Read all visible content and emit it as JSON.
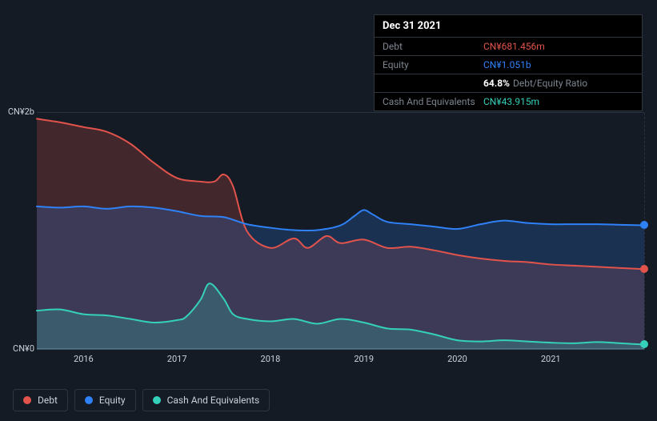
{
  "tooltip": {
    "date": "Dec 31 2021",
    "rows": [
      {
        "label": "Debt",
        "value": "CN¥681.456m",
        "color": "#e2534b"
      },
      {
        "label": "Equity",
        "value": "CN¥1.051b",
        "color": "#2f81f7"
      },
      {
        "label": "",
        "value_strong": "64.8%",
        "value_sub": "Debt/Equity Ratio",
        "color": "#ffffff"
      },
      {
        "label": "Cash And Equivalents",
        "value": "CN¥43.915m",
        "color": "#35d0ba"
      }
    ]
  },
  "chart": {
    "type": "area",
    "background_color": "#151b24",
    "grid_color": "#2a3340",
    "axis_color": "#4a5568",
    "text_color": "#c9d1d9",
    "font_size_axis": 11,
    "ylim": [
      0,
      2000
    ],
    "y_ticks": [
      {
        "v": 2000,
        "label": "CN¥2b"
      },
      {
        "v": 0,
        "label": "CN¥0"
      }
    ],
    "xlim": [
      2015.5,
      2022.0
    ],
    "x_ticks": [
      2016,
      2017,
      2018,
      2019,
      2020,
      2021
    ],
    "hover_x": 2022.0,
    "series": [
      {
        "name": "Debt",
        "color": "#e2534b",
        "fill_opacity": 0.22,
        "line_width": 2,
        "end_dot": true,
        "points": [
          [
            2015.5,
            1950
          ],
          [
            2015.75,
            1920
          ],
          [
            2016.0,
            1880
          ],
          [
            2016.25,
            1840
          ],
          [
            2016.5,
            1740
          ],
          [
            2016.75,
            1580
          ],
          [
            2017.0,
            1450
          ],
          [
            2017.25,
            1420
          ],
          [
            2017.4,
            1420
          ],
          [
            2017.5,
            1480
          ],
          [
            2017.6,
            1380
          ],
          [
            2017.75,
            1000
          ],
          [
            2018.0,
            860
          ],
          [
            2018.25,
            940
          ],
          [
            2018.4,
            860
          ],
          [
            2018.6,
            960
          ],
          [
            2018.75,
            900
          ],
          [
            2019.0,
            930
          ],
          [
            2019.25,
            860
          ],
          [
            2019.5,
            870
          ],
          [
            2019.75,
            840
          ],
          [
            2020.0,
            800
          ],
          [
            2020.25,
            770
          ],
          [
            2020.5,
            750
          ],
          [
            2020.75,
            740
          ],
          [
            2021.0,
            720
          ],
          [
            2021.25,
            710
          ],
          [
            2021.5,
            700
          ],
          [
            2021.75,
            690
          ],
          [
            2022.0,
            681
          ]
        ]
      },
      {
        "name": "Equity",
        "color": "#2f81f7",
        "fill_opacity": 0.22,
        "line_width": 2,
        "end_dot": true,
        "points": [
          [
            2015.5,
            1210
          ],
          [
            2015.75,
            1200
          ],
          [
            2016.0,
            1210
          ],
          [
            2016.25,
            1190
          ],
          [
            2016.5,
            1210
          ],
          [
            2016.75,
            1200
          ],
          [
            2017.0,
            1170
          ],
          [
            2017.25,
            1130
          ],
          [
            2017.5,
            1120
          ],
          [
            2017.75,
            1060
          ],
          [
            2018.0,
            1030
          ],
          [
            2018.25,
            1010
          ],
          [
            2018.5,
            1010
          ],
          [
            2018.75,
            1050
          ],
          [
            2018.9,
            1130
          ],
          [
            2019.0,
            1180
          ],
          [
            2019.1,
            1140
          ],
          [
            2019.25,
            1080
          ],
          [
            2019.5,
            1060
          ],
          [
            2019.75,
            1040
          ],
          [
            2020.0,
            1020
          ],
          [
            2020.25,
            1060
          ],
          [
            2020.5,
            1090
          ],
          [
            2020.75,
            1070
          ],
          [
            2021.0,
            1060
          ],
          [
            2021.25,
            1060
          ],
          [
            2021.5,
            1060
          ],
          [
            2021.75,
            1055
          ],
          [
            2022.0,
            1051
          ]
        ]
      },
      {
        "name": "Cash And Equivalents",
        "color": "#35d0ba",
        "fill_opacity": 0.22,
        "line_width": 2,
        "end_dot": true,
        "points": [
          [
            2015.5,
            330
          ],
          [
            2015.75,
            340
          ],
          [
            2016.0,
            300
          ],
          [
            2016.25,
            290
          ],
          [
            2016.5,
            260
          ],
          [
            2016.75,
            230
          ],
          [
            2017.0,
            250
          ],
          [
            2017.1,
            280
          ],
          [
            2017.25,
            420
          ],
          [
            2017.35,
            560
          ],
          [
            2017.5,
            430
          ],
          [
            2017.6,
            300
          ],
          [
            2017.75,
            260
          ],
          [
            2018.0,
            240
          ],
          [
            2018.25,
            260
          ],
          [
            2018.5,
            220
          ],
          [
            2018.75,
            260
          ],
          [
            2019.0,
            230
          ],
          [
            2019.25,
            180
          ],
          [
            2019.5,
            170
          ],
          [
            2019.75,
            130
          ],
          [
            2020.0,
            80
          ],
          [
            2020.25,
            70
          ],
          [
            2020.5,
            80
          ],
          [
            2020.75,
            70
          ],
          [
            2021.0,
            60
          ],
          [
            2021.25,
            55
          ],
          [
            2021.5,
            65
          ],
          [
            2021.75,
            55
          ],
          [
            2022.0,
            44
          ]
        ]
      }
    ]
  },
  "legend": {
    "items": [
      {
        "label": "Debt",
        "color": "#e2534b"
      },
      {
        "label": "Equity",
        "color": "#2f81f7"
      },
      {
        "label": "Cash And Equivalents",
        "color": "#35d0ba"
      }
    ]
  }
}
